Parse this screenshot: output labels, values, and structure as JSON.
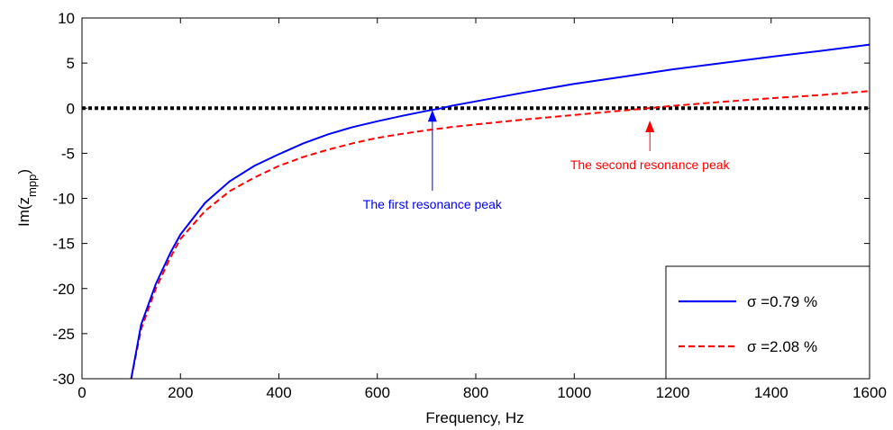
{
  "chart_data": {
    "type": "line",
    "xlabel": "Frequency, Hz",
    "ylabel": "Im(z",
    "ylabel_sub": "mpp",
    "ylabel_close": ")",
    "xlim": [
      0,
      1600
    ],
    "ylim": [
      -30,
      10
    ],
    "xticks": [
      0,
      200,
      400,
      600,
      800,
      1000,
      1200,
      1400,
      1600
    ],
    "yticks": [
      10,
      5,
      0,
      -5,
      -10,
      -15,
      -20,
      -25,
      -30
    ],
    "grid": false,
    "legend_position": "bottom-right",
    "series": [
      {
        "name": "σ =0.79 %",
        "color": "#0000ff",
        "style": "solid",
        "x": [
          100,
          120,
          150,
          180,
          200,
          250,
          300,
          350,
          400,
          450,
          500,
          550,
          600,
          650,
          700,
          730,
          750,
          800,
          900,
          1000,
          1100,
          1200,
          1300,
          1400,
          1500,
          1600
        ],
        "y": [
          -30,
          -24,
          -19.5,
          -16,
          -14,
          -10.5,
          -8.1,
          -6.4,
          -5.1,
          -3.9,
          -2.9,
          -2.1,
          -1.45,
          -0.85,
          -0.3,
          0,
          0.25,
          0.75,
          1.75,
          2.7,
          3.5,
          4.3,
          5,
          5.7,
          6.35,
          7.05
        ]
      },
      {
        "name": "σ =2.08 %",
        "color": "#ff0000",
        "style": "dashed",
        "x": [
          100,
          120,
          150,
          180,
          200,
          250,
          300,
          350,
          400,
          450,
          500,
          550,
          600,
          650,
          700,
          750,
          800,
          900,
          1000,
          1100,
          1150,
          1200,
          1300,
          1400,
          1500,
          1600
        ],
        "y": [
          -30,
          -24.5,
          -20,
          -16.5,
          -14.5,
          -11.4,
          -9.2,
          -7.7,
          -6.4,
          -5.4,
          -4.6,
          -3.9,
          -3.3,
          -2.85,
          -2.45,
          -2.1,
          -1.8,
          -1.25,
          -0.75,
          -0.25,
          0,
          0.25,
          0.7,
          1.1,
          1.45,
          1.9
        ]
      },
      {
        "name": "",
        "color": "#000000",
        "style": "dotted",
        "x": [
          0,
          1600
        ],
        "y": [
          0,
          0
        ]
      }
    ],
    "annotations": [
      {
        "text": "The first resonance peak",
        "color": "#0000ff",
        "arrow_to": [
          710,
          0
        ]
      },
      {
        "text": "The second resonance peak",
        "color": "#ff0000",
        "arrow_to": [
          1150,
          0
        ]
      }
    ]
  }
}
